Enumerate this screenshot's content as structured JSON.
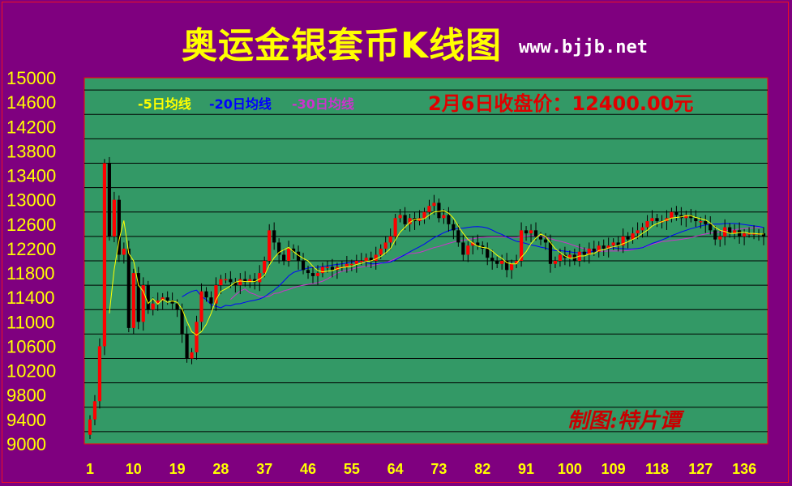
{
  "header": {
    "title": "奥运金银套币K线图",
    "url": "www.bjjb.net"
  },
  "legend": {
    "ma5": "-5日均线",
    "ma20": "-20日均线",
    "ma30": "-30日均线"
  },
  "close_note": "2月6日收盘价：12400.00元",
  "author": "制图:特片谭",
  "colors": {
    "background": "#7f007f",
    "plot_background": "#339966",
    "up_candle": "#ff0000",
    "down_candle": "#000000",
    "ma5": "#ffff00",
    "ma20": "#0000ff",
    "ma30": "#cc33cc",
    "tick_text": "#ffff00"
  },
  "chart_data": {
    "type": "candlestick",
    "title": "奥运金银套币K线图",
    "x_tick_labels": [
      "1",
      "10",
      "19",
      "28",
      "37",
      "46",
      "55",
      "64",
      "73",
      "82",
      "91",
      "100",
      "109",
      "118",
      "127",
      "136"
    ],
    "y_tick_labels": [
      "15000",
      "14600",
      "14200",
      "13800",
      "13400",
      "13000",
      "12600",
      "12200",
      "11800",
      "11400",
      "11000",
      "10600",
      "10200",
      "9800",
      "9400",
      "9000"
    ],
    "ylim": [
      9000,
      15000
    ],
    "xlim": [
      1,
      141
    ],
    "grid": "horizontal",
    "approx_close_series_note": "close estimated from chart",
    "close": [
      9400,
      9700,
      10600,
      13600,
      12400,
      13000,
      12100,
      12200,
      10900,
      11800,
      11000,
      11600,
      11200,
      11300,
      11350,
      11400,
      11350,
      11300,
      11200,
      10800,
      10400,
      10500,
      11000,
      11500,
      11400,
      11300,
      11600,
      11700,
      11700,
      11650,
      11600,
      11700,
      11650,
      11700,
      11650,
      11800,
      12000,
      12500,
      12300,
      12100,
      12000,
      12200,
      12150,
      12000,
      11850,
      11800,
      11750,
      11800,
      11900,
      11900,
      11850,
      11900,
      11900,
      11950,
      11950,
      12000,
      12000,
      12050,
      12000,
      12100,
      12200,
      12300,
      12400,
      12700,
      12750,
      12600,
      12700,
      12650,
      12700,
      12800,
      12900,
      12950,
      12700,
      12750,
      12600,
      12500,
      12300,
      12100,
      12250,
      12300,
      12250,
      12200,
      12050,
      12000,
      11950,
      12000,
      11850,
      11950,
      12000,
      12500,
      12450,
      12500,
      12400,
      12350,
      12300,
      11950,
      12000,
      12100,
      12050,
      12100,
      12000,
      12150,
      12100,
      12200,
      12150,
      12250,
      12200,
      12250,
      12300,
      12250,
      12400,
      12350,
      12450,
      12500,
      12550,
      12650,
      12700,
      12650,
      12650,
      12700,
      12800,
      12750,
      12700,
      12750,
      12700,
      12650,
      12650,
      12600,
      12500,
      12350,
      12400,
      12550,
      12450,
      12500,
      12400,
      12450,
      12450,
      12450,
      12450,
      12400
    ],
    "ma5_note": "5-day moving average",
    "ma20_note": "20-day moving average",
    "ma30_note": "30-day moving average"
  }
}
